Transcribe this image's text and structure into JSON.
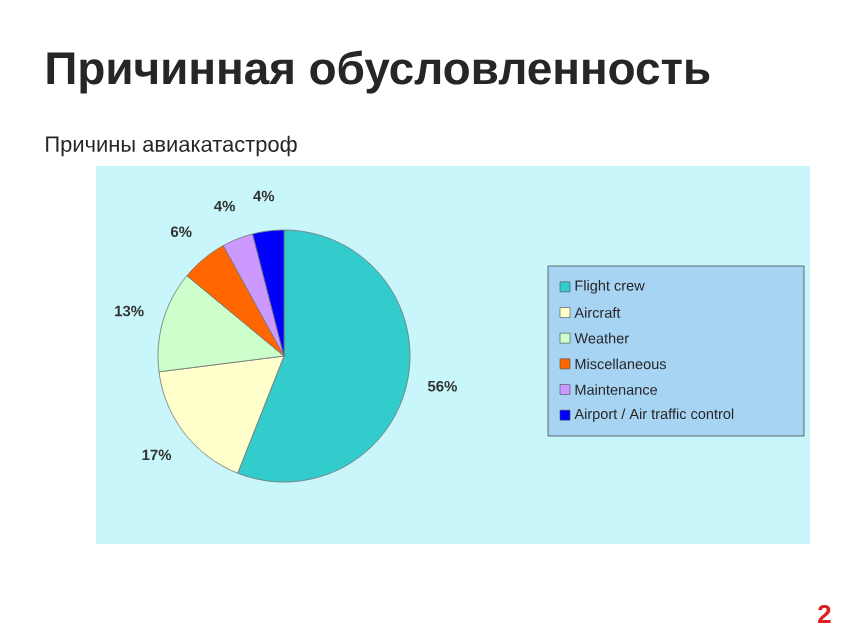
{
  "chart_data": {
    "type": "pie",
    "title": "Причинная обусловленность",
    "subtitle": "Причины авиакатастроф",
    "categories": [
      "Flight crew",
      "Aircraft",
      "Weather",
      "Miscellaneous",
      "Maintenance",
      "Airport / Air traffic control"
    ],
    "values": [
      56,
      17,
      13,
      6,
      4,
      4
    ],
    "value_labels": [
      "56%",
      "17%",
      "13%",
      "6%",
      "4%",
      "4%"
    ],
    "colors": [
      "#33cccc",
      "#ffffcc",
      "#ccffcc",
      "#ff6600",
      "#cc99ff",
      "#0000ff"
    ],
    "legend": "right",
    "annotations": [
      "2"
    ]
  }
}
